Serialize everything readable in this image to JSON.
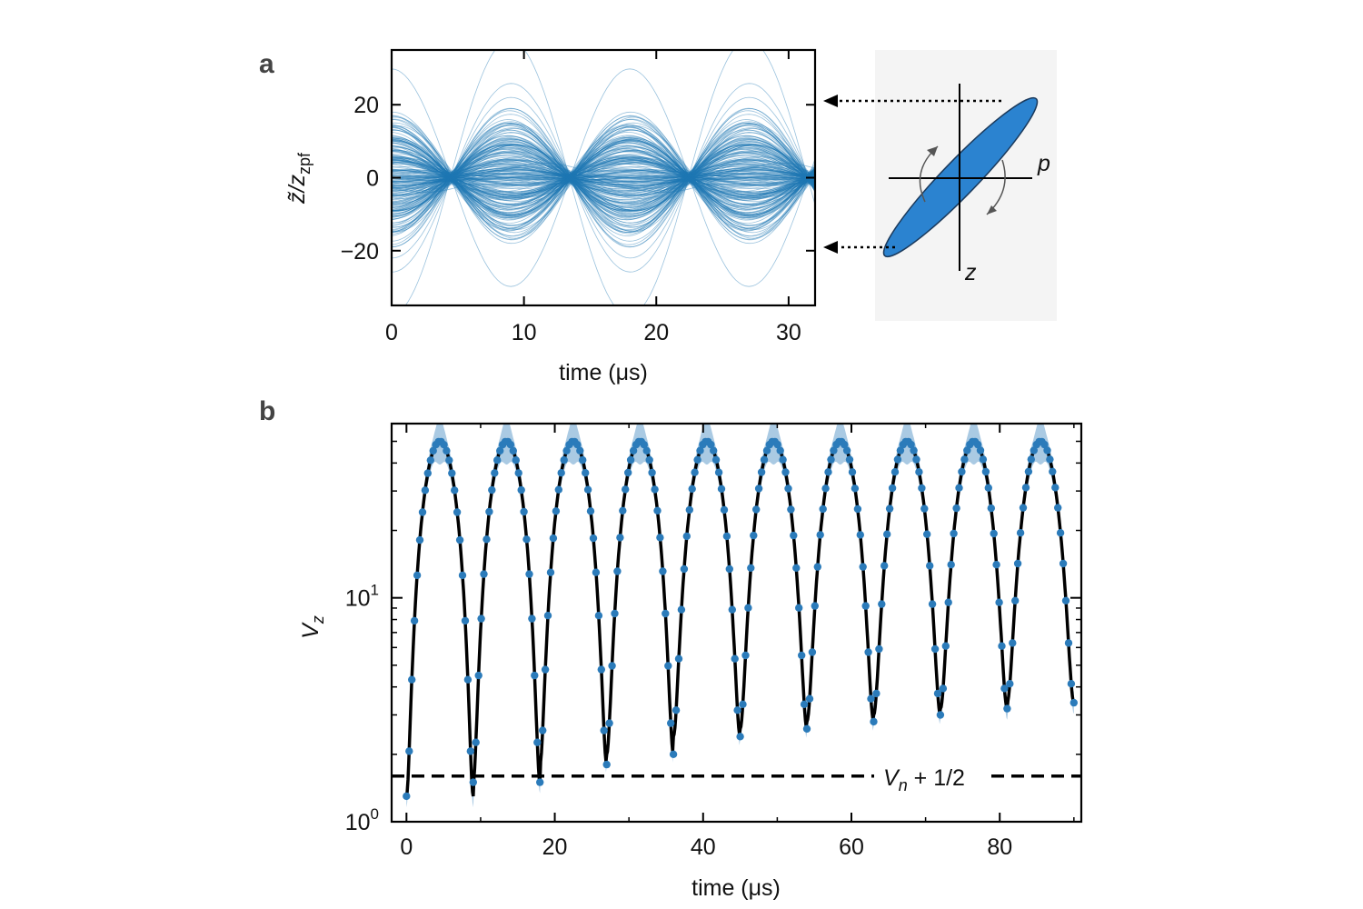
{
  "chart_data": [
    {
      "panel": "a",
      "type": "line",
      "xlabel": "time (μs)",
      "ylabel": "z̃/z_zpf",
      "ylabel_main": "z̃/z",
      "ylabel_sub": "zpf",
      "xlim": [
        0,
        32
      ],
      "ylim": [
        -35,
        35
      ],
      "xticks": [
        0,
        10,
        20,
        30
      ],
      "yticks": [
        20,
        0,
        -20
      ],
      "ytick_labels": [
        "20",
        "0",
        "−20"
      ],
      "period_us": 18,
      "envelope_max": 20,
      "envelope_node": 2,
      "trace_color": "#1f77b4",
      "description_inset": {
        "p_label": "p",
        "z_label": "z",
        "ellipse_color": "#2b83d0",
        "background": "#f4f4f4"
      }
    },
    {
      "panel": "b",
      "type": "line",
      "scale_y": "log",
      "xlabel": "time (μs)",
      "ylabel": "Ṽ_z",
      "ylabel_main": "V",
      "ylabel_sub": "z",
      "xlim": [
        -2,
        91
      ],
      "ylim": [
        1,
        60
      ],
      "xticks": [
        0,
        20,
        40,
        60,
        80
      ],
      "yticks": [
        1,
        10
      ],
      "ytick_bases": [
        "10",
        "10"
      ],
      "ytick_exps": [
        "0",
        "1"
      ],
      "series": [
        {
          "style": "markers-with-band",
          "color": "#2b7bba",
          "peak": 50,
          "period_us": 9,
          "first_min_us": 4.5,
          "minima": [
            1.3,
            1.5,
            1.8,
            2.0,
            2.4,
            2.6,
            2.8,
            3.0,
            3.2,
            3.4
          ]
        },
        {
          "style": "dashed-fit",
          "color": "#000000"
        }
      ],
      "reference_line": {
        "y": 1.6,
        "label_main": "V",
        "label_sub": "n",
        "label_rest": " + 1/2"
      }
    }
  ]
}
